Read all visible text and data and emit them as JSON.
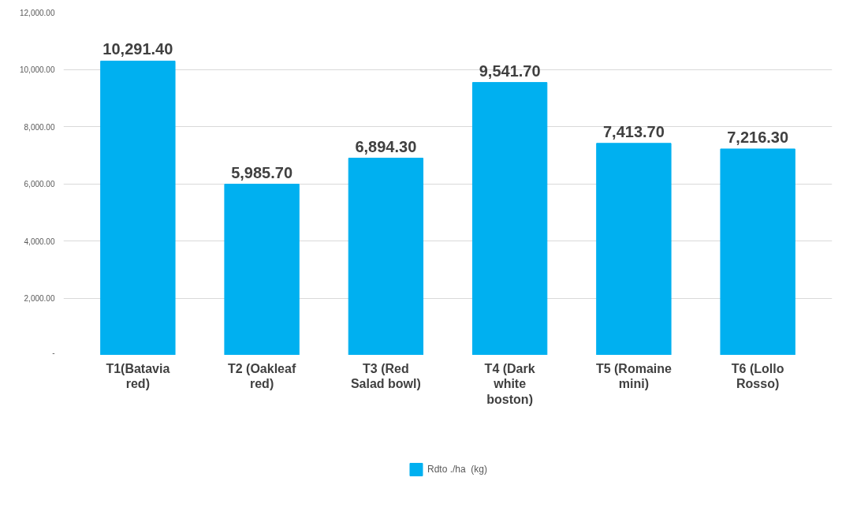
{
  "chart_data": {
    "type": "bar",
    "categories": [
      "T1(Batavia red)",
      "T2 (Oakleaf red)",
      "T3 (Red Salad bowl)",
      "T4 (Dark white boston)",
      "T5 (Romaine mini)",
      "T6 (Lollo Rosso)"
    ],
    "series": [
      {
        "name": "Rdto ./ha  (kg)",
        "color": "#00b0f0",
        "values": [
          10291.4,
          5985.7,
          6894.3,
          9541.7,
          7413.7,
          7216.3
        ],
        "value_labels": [
          "10,291.40",
          "5,985.70",
          "6,894.30",
          "9,541.70",
          "7,413.70",
          "7,216.30"
        ]
      }
    ],
    "ylim": [
      0,
      12000
    ],
    "yticks": [
      {
        "value": 0,
        "label": "-"
      },
      {
        "value": 2000,
        "label": "2,000.00"
      },
      {
        "value": 4000,
        "label": "4,000.00"
      },
      {
        "value": 6000,
        "label": "6,000.00"
      },
      {
        "value": 8000,
        "label": "8,000.00"
      },
      {
        "value": 10000,
        "label": "10,000.00"
      },
      {
        "value": 12000,
        "label": "12,000.00"
      }
    ],
    "grid": "y",
    "legend": "bottom"
  }
}
